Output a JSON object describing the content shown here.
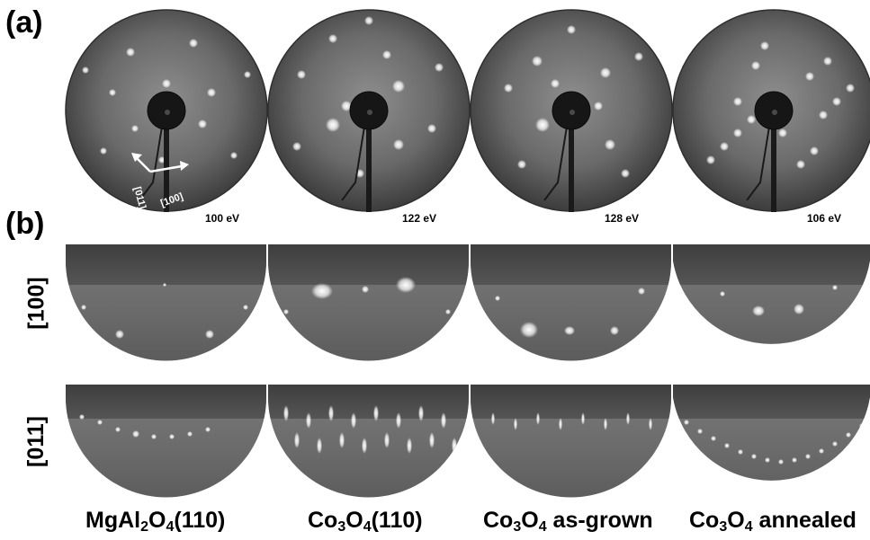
{
  "panels": {
    "a": "(a)",
    "b": "(b)"
  },
  "direction_labels": {
    "row1": "[100]",
    "row2": "[011]"
  },
  "inset_axes": {
    "vertical": "[011]",
    "horizontal": "[100]"
  },
  "energies": [
    "100 eV",
    "122 eV",
    "128 eV",
    "106 eV"
  ],
  "samples": [
    {
      "base": "MgAl",
      "sub1": "2",
      "mid": "O",
      "sub2": "4",
      "tail": "(110)"
    },
    {
      "base": "Co",
      "sub1": "3",
      "mid": "O",
      "sub2": "4",
      "tail": "(110)"
    },
    {
      "base": "Co",
      "sub1": "3",
      "mid": "O",
      "sub2": "4",
      "tail": " as-grown"
    },
    {
      "base": "Co",
      "sub1": "3",
      "mid": "O",
      "sub2": "4",
      "tail": " annealed"
    }
  ],
  "colors": {
    "background": "#ffffff",
    "screen_dark": "#2a2a2a",
    "screen_light": "#8c8c8c",
    "spot": "#ffffff",
    "arrow": "#ffffff"
  }
}
